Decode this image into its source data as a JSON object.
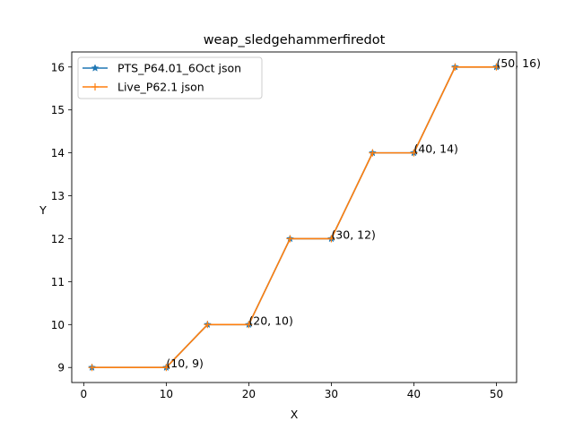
{
  "chart_data": {
    "type": "line",
    "title": "weap_sledgehammerfiredot",
    "xlabel": "X",
    "ylabel": "Y",
    "xlim": [
      -1.45,
      52.45
    ],
    "ylim": [
      8.65,
      16.35
    ],
    "xticks": [
      0,
      10,
      20,
      30,
      40,
      50
    ],
    "yticks": [
      9,
      10,
      11,
      12,
      13,
      14,
      15,
      16
    ],
    "grid": false,
    "legend_position": "upper-left",
    "x": [
      1,
      10,
      15,
      20,
      25,
      30,
      35,
      40,
      45,
      50
    ],
    "series": [
      {
        "name": "PTS_P64.01_6Oct json",
        "color": "#1f77b4",
        "marker": "star",
        "values": [
          9,
          9,
          10,
          10,
          12,
          12,
          14,
          14,
          16,
          16
        ]
      },
      {
        "name": "Live_P62.1 json",
        "color": "#ff7f0e",
        "marker": "plus",
        "values": [
          9,
          9,
          10,
          10,
          12,
          12,
          14,
          14,
          16,
          16
        ]
      }
    ],
    "annotations": [
      {
        "x": 10,
        "y": 9,
        "text": "(10, 9)"
      },
      {
        "x": 20,
        "y": 10,
        "text": "(20, 10)"
      },
      {
        "x": 30,
        "y": 12,
        "text": "(30, 12)"
      },
      {
        "x": 40,
        "y": 14,
        "text": "(40, 14)"
      },
      {
        "x": 50,
        "y": 16,
        "text": "(50, 16)"
      }
    ]
  }
}
